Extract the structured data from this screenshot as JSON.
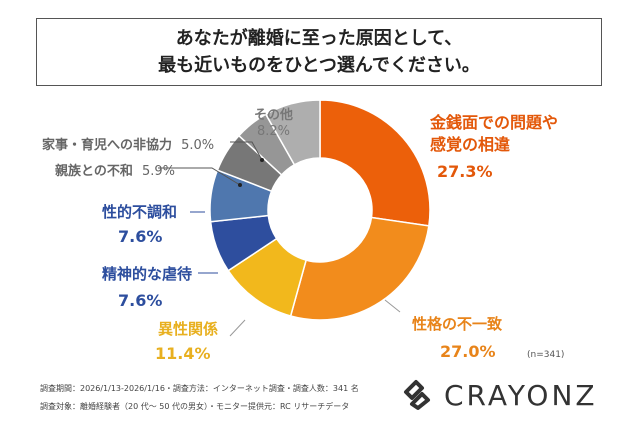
{
  "title": {
    "line1": "あなたが離婚に至った原因として、",
    "line2": "最も近いものをひとつ選んでください。"
  },
  "chart_data": {
    "type": "pie",
    "donut": true,
    "categories": [
      "金銭面での問題や感覚の相違",
      "性格の不一致",
      "異性関係",
      "精神的な虐待",
      "性的不調和",
      "親族との不和",
      "家事・育児への非協力",
      "その他"
    ],
    "values": [
      27.3,
      27.0,
      11.4,
      7.6,
      7.6,
      5.9,
      5.0,
      8.2
    ],
    "value_labels": [
      "27.3%",
      "27.0%",
      "11.4%",
      "7.6%",
      "7.6%",
      "5.9%",
      "5.0%",
      "8.2%"
    ],
    "colors": [
      "#EC600A",
      "#F28C1C",
      "#F2B81C",
      "#2E4E9E",
      "#4F77AE",
      "#777777",
      "#969696",
      "#AEAEAE"
    ],
    "label_colors": [
      "#E3580A",
      "#E8841A",
      "#E8B020",
      "#2D4E9E",
      "#2D4E9E",
      "#666666",
      "#666666",
      "#777777"
    ],
    "sample_note": "(n=341)"
  },
  "labels": {
    "c0a": "金銭面での問題や",
    "c0b": "感覚の相違",
    "c1": "性格の不一致",
    "c2": "異性関係",
    "c3": "精神的な虐待",
    "c4": "性的不調和",
    "c5": "親族との不和",
    "c6": "家事・育児への非協力",
    "c7": "その他"
  },
  "footer": {
    "line1": "調査期間：2026/1/13-2026/1/16・調査方法：インターネット調査・調査人数：341 名",
    "line2": "調査対象：離婚経験者（20 代～ 50 代の男女）・モニター提供元：RC リサーチデータ"
  },
  "logo": {
    "text": "CRAYONZ"
  }
}
